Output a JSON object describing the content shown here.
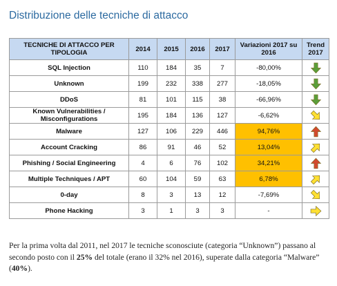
{
  "title": "Distribuzione delle tecniche di attacco",
  "table": {
    "header": [
      "TECNICHE DI ATTACCO PER TIPOLOGIA",
      "2014",
      "2015",
      "2016",
      "2017",
      "Variazioni 2017 su 2016",
      "Trend 2017"
    ],
    "rows": [
      [
        "SQL Injection",
        "110",
        "184",
        "35",
        "7",
        "-80,00%"
      ],
      [
        "Unknown",
        "199",
        "232",
        "338",
        "277",
        "-18,05%"
      ],
      [
        "DDoS",
        "81",
        "101",
        "115",
        "38",
        "-66,96%"
      ],
      [
        "Known Vulnerabilities / Misconfigurations",
        "195",
        "184",
        "136",
        "127",
        "-6,62%"
      ],
      [
        "Malware",
        "127",
        "106",
        "229",
        "446",
        "94,76%"
      ],
      [
        "Account Cracking",
        "86",
        "91",
        "46",
        "52",
        "13,04%"
      ],
      [
        "Phishing / Social Engineering",
        "4",
        "6",
        "76",
        "102",
        "34,21%"
      ],
      [
        "Multiple Techniques / APT",
        "60",
        "104",
        "59",
        "63",
        "6,78%"
      ],
      [
        "0-day",
        "8",
        "3",
        "13",
        "12",
        "-7,69%"
      ],
      [
        "Phone Hacking",
        "3",
        "1",
        "3",
        "3",
        "-"
      ]
    ]
  },
  "paragraph": [
    "Per la prima volta dal 2011, nel 2017 le tecniche sconosciute (categoria “Unknown”) passano al secondo posto con il ",
    "25%",
    " del totale (erano il 32% nel 2016), superate dalla categoria “Malware” (",
    "40%",
    ")."
  ]
}
